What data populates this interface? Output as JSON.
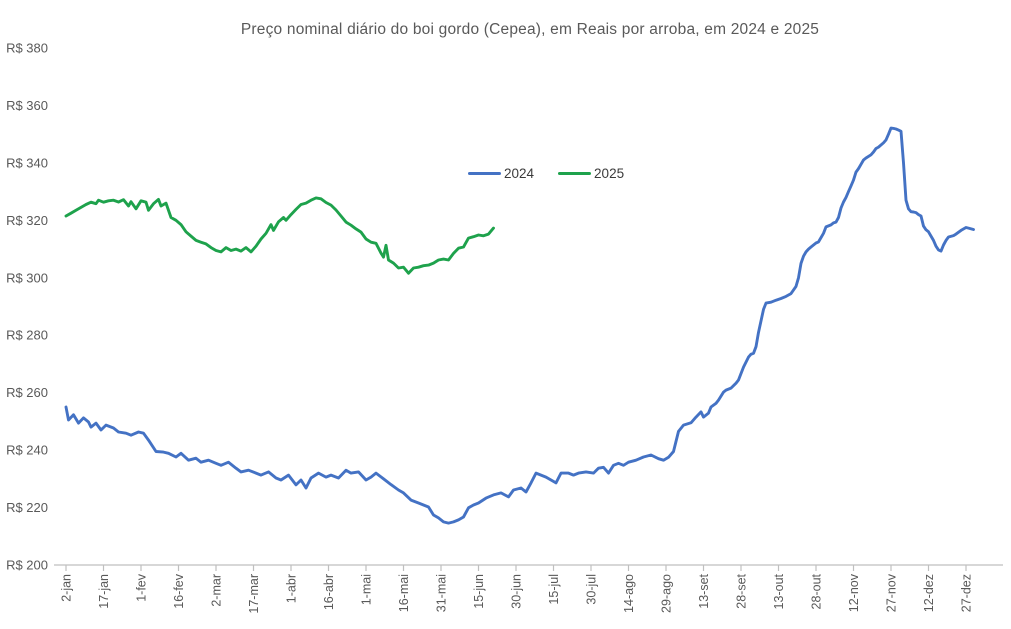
{
  "chart_data": {
    "type": "line",
    "title": "Preço nominal diário do boi gordo (Cepea), em Reais por arroba, em 2024 e 2025",
    "currency_prefix": "R$ ",
    "ylim": [
      200,
      380
    ],
    "y_tick_step": 20,
    "y_tick_labels": [
      "R$ 380",
      "R$ 360",
      "R$ 340",
      "R$ 320",
      "R$ 300",
      "R$ 280",
      "R$ 260",
      "R$ 240",
      "R$ 220",
      "R$ 200"
    ],
    "x_tick_labels": [
      "2-jan",
      "17-jan",
      "1-fev",
      "16-fev",
      "2-mar",
      "17-mar",
      "1-abr",
      "16-abr",
      "1-mai",
      "16-mai",
      "31-mai",
      "15-jun",
      "30-jun",
      "15-jul",
      "30-jul",
      "14-ago",
      "29-ago",
      "13-set",
      "28-set",
      "13-out",
      "28-out",
      "12-nov",
      "27-nov",
      "12-dez",
      "27-dez"
    ],
    "x_tick_step_days": 15,
    "xlim_days": [
      0,
      363
    ],
    "grid": false,
    "legend_position": "inside-top-center",
    "axis_color": "#bfbfbf",
    "label_color": "#595959",
    "series": [
      {
        "name": "2024",
        "color": "#4472c4",
        "points": [
          [
            0,
            255
          ],
          [
            1,
            250.5
          ],
          [
            3,
            252.3
          ],
          [
            5,
            249.4
          ],
          [
            7,
            251.2
          ],
          [
            9,
            249.8
          ],
          [
            10,
            248
          ],
          [
            12,
            249.4
          ],
          [
            14,
            247
          ],
          [
            16,
            248.7
          ],
          [
            19,
            247.7
          ],
          [
            21,
            246.3
          ],
          [
            24,
            245.9
          ],
          [
            26,
            245.2
          ],
          [
            29,
            246.3
          ],
          [
            31,
            245.9
          ],
          [
            33,
            243.5
          ],
          [
            36,
            239.5
          ],
          [
            39,
            239.3
          ],
          [
            41,
            238.9
          ],
          [
            44,
            237.6
          ],
          [
            46,
            238.9
          ],
          [
            49,
            236.5
          ],
          [
            52,
            237.2
          ],
          [
            54,
            235.8
          ],
          [
            57,
            236.5
          ],
          [
            60,
            235.4
          ],
          [
            62,
            234.7
          ],
          [
            65,
            235.8
          ],
          [
            68,
            233.7
          ],
          [
            70,
            232.4
          ],
          [
            73,
            233
          ],
          [
            76,
            232
          ],
          [
            78,
            231.3
          ],
          [
            81,
            232.4
          ],
          [
            84,
            230.3
          ],
          [
            86,
            229.6
          ],
          [
            89,
            231.3
          ],
          [
            92,
            227.9
          ],
          [
            94,
            229.6
          ],
          [
            96,
            226.8
          ],
          [
            98,
            230.3
          ],
          [
            101,
            232
          ],
          [
            104,
            230.6
          ],
          [
            106,
            231.3
          ],
          [
            109,
            230.3
          ],
          [
            112,
            233
          ],
          [
            114,
            232
          ],
          [
            117,
            232.4
          ],
          [
            120,
            229.6
          ],
          [
            122,
            230.6
          ],
          [
            124,
            232
          ],
          [
            127,
            230
          ],
          [
            130,
            228
          ],
          [
            133,
            226.1
          ],
          [
            135,
            225.1
          ],
          [
            138,
            222.6
          ],
          [
            141,
            221.6
          ],
          [
            143,
            220.9
          ],
          [
            145,
            220.2
          ],
          [
            147,
            217.4
          ],
          [
            149,
            216.4
          ],
          [
            151,
            215
          ],
          [
            153,
            214.6
          ],
          [
            155,
            215
          ],
          [
            157,
            215.7
          ],
          [
            159,
            216.7
          ],
          [
            161,
            219.9
          ],
          [
            163,
            220.9
          ],
          [
            165,
            221.6
          ],
          [
            168,
            223.3
          ],
          [
            171,
            224.4
          ],
          [
            174,
            225.1
          ],
          [
            177,
            223.7
          ],
          [
            179,
            226.1
          ],
          [
            182,
            226.8
          ],
          [
            184,
            225.4
          ],
          [
            186,
            228.6
          ],
          [
            188,
            232
          ],
          [
            190,
            231.3
          ],
          [
            192,
            230.6
          ],
          [
            194,
            229.6
          ],
          [
            196,
            228.6
          ],
          [
            198,
            232
          ],
          [
            201,
            232
          ],
          [
            203,
            231.3
          ],
          [
            205,
            232
          ],
          [
            208,
            232.4
          ],
          [
            211,
            232
          ],
          [
            213,
            233.7
          ],
          [
            215,
            234
          ],
          [
            217,
            232
          ],
          [
            219,
            234.7
          ],
          [
            221,
            235.4
          ],
          [
            223,
            234.7
          ],
          [
            225,
            235.8
          ],
          [
            228,
            236.5
          ],
          [
            231,
            237.6
          ],
          [
            234,
            238.3
          ],
          [
            237,
            237
          ],
          [
            239,
            236.5
          ],
          [
            241,
            237.5
          ],
          [
            243,
            239.5
          ],
          [
            245,
            246.5
          ],
          [
            247,
            248.7
          ],
          [
            250,
            249.5
          ],
          [
            252,
            251.5
          ],
          [
            254,
            253.3
          ],
          [
            255,
            251.5
          ],
          [
            257,
            252.9
          ],
          [
            258,
            255
          ],
          [
            260,
            256.3
          ],
          [
            261,
            257.4
          ],
          [
            263,
            260.2
          ],
          [
            264,
            260.9
          ],
          [
            266,
            261.6
          ],
          [
            268,
            263.3
          ],
          [
            269,
            264.4
          ],
          [
            271,
            268.9
          ],
          [
            273,
            272.4
          ],
          [
            274,
            273.4
          ],
          [
            275,
            273.7
          ],
          [
            276,
            276
          ],
          [
            277,
            281
          ],
          [
            278,
            285
          ],
          [
            279,
            289
          ],
          [
            280,
            291.2
          ],
          [
            282,
            291.5
          ],
          [
            284,
            292.2
          ],
          [
            286,
            292.8
          ],
          [
            288,
            293.5
          ],
          [
            290,
            294.5
          ],
          [
            292,
            297
          ],
          [
            293,
            300
          ],
          [
            294,
            305
          ],
          [
            295,
            307.5
          ],
          [
            296,
            309
          ],
          [
            297,
            310
          ],
          [
            298,
            310.7
          ],
          [
            300,
            312.1
          ],
          [
            301,
            312.5
          ],
          [
            302,
            314
          ],
          [
            303,
            315.5
          ],
          [
            304,
            317.7
          ],
          [
            306,
            318.4
          ],
          [
            307,
            319.1
          ],
          [
            308,
            319.4
          ],
          [
            309,
            321
          ],
          [
            310,
            324.3
          ],
          [
            311,
            326.4
          ],
          [
            312,
            328
          ],
          [
            313,
            330
          ],
          [
            314,
            332
          ],
          [
            315,
            334
          ],
          [
            316,
            336.8
          ],
          [
            317,
            338
          ],
          [
            318,
            339.5
          ],
          [
            319,
            341
          ],
          [
            320,
            341.7
          ],
          [
            322,
            342.8
          ],
          [
            323,
            343.8
          ],
          [
            324,
            345
          ],
          [
            325,
            345.5
          ],
          [
            327,
            347
          ],
          [
            328,
            348
          ],
          [
            329,
            350
          ],
          [
            330,
            352.1
          ],
          [
            331,
            352
          ],
          [
            332,
            351.8
          ],
          [
            333,
            351.4
          ],
          [
            334,
            351
          ],
          [
            335,
            340
          ],
          [
            336,
            327
          ],
          [
            337,
            324
          ],
          [
            338,
            323
          ],
          [
            339,
            322.9
          ],
          [
            340,
            322.7
          ],
          [
            341,
            322
          ],
          [
            342,
            321.5
          ],
          [
            343,
            318
          ],
          [
            344,
            316.7
          ],
          [
            345,
            316
          ],
          [
            346,
            314.5
          ],
          [
            347,
            313
          ],
          [
            348,
            311
          ],
          [
            349,
            309.7
          ],
          [
            350,
            309.3
          ],
          [
            351,
            311.4
          ],
          [
            352,
            313
          ],
          [
            353,
            314.2
          ],
          [
            355,
            314.7
          ],
          [
            356,
            315.2
          ],
          [
            358,
            316.5
          ],
          [
            360,
            317.5
          ],
          [
            361,
            317.3
          ],
          [
            363,
            316.8
          ]
        ]
      },
      {
        "name": "2025",
        "color": "#1ea24c",
        "points": [
          [
            0,
            321.5
          ],
          [
            2,
            322.5
          ],
          [
            4,
            323.5
          ],
          [
            6,
            324.5
          ],
          [
            8,
            325.5
          ],
          [
            10,
            326.3
          ],
          [
            12,
            325.8
          ],
          [
            13,
            327
          ],
          [
            15,
            326.3
          ],
          [
            17,
            326.8
          ],
          [
            19,
            327
          ],
          [
            21,
            326.4
          ],
          [
            23,
            327.2
          ],
          [
            25,
            325
          ],
          [
            26,
            326.5
          ],
          [
            28,
            324
          ],
          [
            30,
            326.8
          ],
          [
            32,
            326.3
          ],
          [
            33,
            323.5
          ],
          [
            35,
            325.8
          ],
          [
            37,
            327.3
          ],
          [
            38,
            325
          ],
          [
            40,
            326
          ],
          [
            42,
            321
          ],
          [
            44,
            320
          ],
          [
            46,
            318.5
          ],
          [
            48,
            316
          ],
          [
            50,
            314.5
          ],
          [
            52,
            313
          ],
          [
            54,
            312.4
          ],
          [
            56,
            311.8
          ],
          [
            58,
            310.5
          ],
          [
            60,
            309.5
          ],
          [
            62,
            309
          ],
          [
            64,
            310.5
          ],
          [
            66,
            309.5
          ],
          [
            68,
            310
          ],
          [
            70,
            309.3
          ],
          [
            72,
            310.5
          ],
          [
            74,
            309
          ],
          [
            76,
            311
          ],
          [
            78,
            313.5
          ],
          [
            80,
            315.5
          ],
          [
            82,
            318.5
          ],
          [
            83,
            316.5
          ],
          [
            85,
            319.5
          ],
          [
            87,
            321
          ],
          [
            88,
            320
          ],
          [
            90,
            322
          ],
          [
            92,
            323.8
          ],
          [
            94,
            325.5
          ],
          [
            96,
            326
          ],
          [
            98,
            327
          ],
          [
            100,
            327.8
          ],
          [
            102,
            327.5
          ],
          [
            104,
            326.2
          ],
          [
            106,
            325.3
          ],
          [
            108,
            323.6
          ],
          [
            110,
            321.5
          ],
          [
            112,
            319.4
          ],
          [
            114,
            318.3
          ],
          [
            116,
            317
          ],
          [
            118,
            315.9
          ],
          [
            120,
            313.5
          ],
          [
            122,
            312.4
          ],
          [
            124,
            312
          ],
          [
            126,
            308.6
          ],
          [
            127,
            307.2
          ],
          [
            128,
            311.3
          ],
          [
            129,
            306.2
          ],
          [
            131,
            305.1
          ],
          [
            133,
            303.4
          ],
          [
            135,
            303.7
          ],
          [
            137,
            301.6
          ],
          [
            139,
            303.4
          ],
          [
            141,
            303.7
          ],
          [
            143,
            304.2
          ],
          [
            145,
            304.4
          ],
          [
            147,
            305.1
          ],
          [
            149,
            306.2
          ],
          [
            151,
            306.5
          ],
          [
            153,
            306.2
          ],
          [
            155,
            308.5
          ],
          [
            157,
            310.3
          ],
          [
            159,
            310.7
          ],
          [
            161,
            313.8
          ],
          [
            163,
            314.3
          ],
          [
            165,
            314.9
          ],
          [
            167,
            314.6
          ],
          [
            169,
            315.2
          ],
          [
            171,
            317.3
          ]
        ]
      }
    ]
  }
}
